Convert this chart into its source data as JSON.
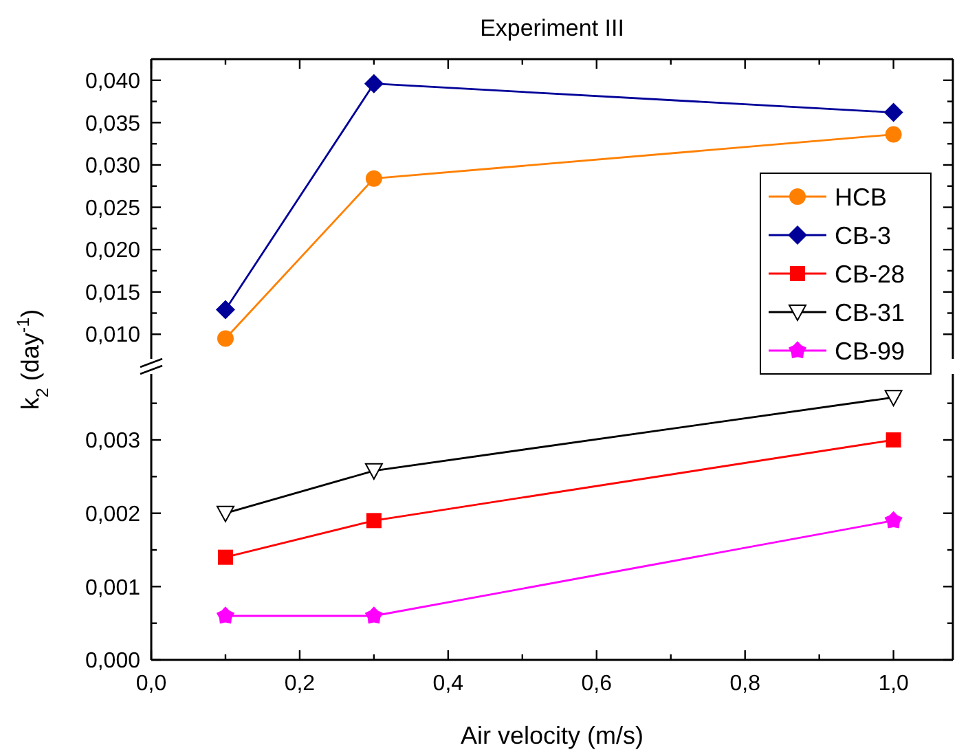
{
  "chart_data": [
    {
      "type": "line",
      "title": "Experiment III",
      "xlim": [
        0,
        1.08
      ],
      "xticks": [
        {
          "value": 0,
          "label": null
        },
        {
          "value": 0.1,
          "label": null
        },
        {
          "value": 0.2,
          "label": null
        },
        {
          "value": 0.3,
          "label": null
        },
        {
          "value": 0.4,
          "label": null
        },
        {
          "value": 0.5,
          "label": null
        },
        {
          "value": 0.6,
          "label": null
        },
        {
          "value": 0.7,
          "label": null
        },
        {
          "value": 0.8,
          "label": null
        },
        {
          "value": 0.9,
          "label": null
        },
        {
          "value": 1.0,
          "label": null
        }
      ],
      "ylim": [
        0.0071,
        0.0425
      ],
      "yticks": [
        {
          "value": 0.01,
          "label": "0,010"
        },
        {
          "value": 0.0125,
          "label": null
        },
        {
          "value": 0.015,
          "label": "0,015"
        },
        {
          "value": 0.0175,
          "label": null
        },
        {
          "value": 0.02,
          "label": "0,020"
        },
        {
          "value": 0.0225,
          "label": null
        },
        {
          "value": 0.025,
          "label": "0,025"
        },
        {
          "value": 0.0275,
          "label": null
        },
        {
          "value": 0.03,
          "label": "0,030"
        },
        {
          "value": 0.0325,
          "label": null
        },
        {
          "value": 0.035,
          "label": "0,035"
        },
        {
          "value": 0.0375,
          "label": null
        },
        {
          "value": 0.04,
          "label": "0,040"
        }
      ],
      "tick_labels": "y",
      "legend": "right",
      "grid": false,
      "x": [
        0.1,
        0.3,
        1.0
      ],
      "series": [
        {
          "name": "HCB",
          "color": "#ff8000",
          "marker": "circle",
          "values": [
            0.0095,
            0.0284,
            0.0336
          ]
        },
        {
          "name": "CB-3",
          "color": "#000099",
          "marker": "diamond",
          "values": [
            0.0129,
            0.0396,
            0.0362
          ]
        }
      ]
    },
    {
      "type": "line",
      "xlabel": "Air velocity (m/s)",
      "ylabel": "k$_{2}$ (day$^{-1}$)",
      "xlim": [
        0,
        1.08
      ],
      "xticks": [
        {
          "value": 0,
          "label": "0,0"
        },
        {
          "value": 0.1,
          "label": null
        },
        {
          "value": 0.2,
          "label": "0,2"
        },
        {
          "value": 0.3,
          "label": null
        },
        {
          "value": 0.4,
          "label": "0,4"
        },
        {
          "value": 0.5,
          "label": null
        },
        {
          "value": 0.6,
          "label": "0,6"
        },
        {
          "value": 0.7,
          "label": null
        },
        {
          "value": 0.8,
          "label": "0,8"
        },
        {
          "value": 0.9,
          "label": null
        },
        {
          "value": 1.0,
          "label": "1,0"
        }
      ],
      "ylim": [
        0,
        0.0039
      ],
      "yticks": [
        {
          "value": 0,
          "label": "0,000"
        },
        {
          "value": 0.0005,
          "label": null
        },
        {
          "value": 0.001,
          "label": "0,001"
        },
        {
          "value": 0.0015,
          "label": null
        },
        {
          "value": 0.002,
          "label": "0,002"
        },
        {
          "value": 0.0025,
          "label": null
        },
        {
          "value": 0.003,
          "label": "0,003"
        },
        {
          "value": 0.0035,
          "label": null
        }
      ],
      "grid": false,
      "legend": "right",
      "x": [
        0.1,
        0.3,
        1.0
      ],
      "series": [
        {
          "name": "CB-28",
          "color": "#ff0000",
          "marker": "square",
          "values": [
            0.0014,
            0.0019,
            0.003
          ]
        },
        {
          "name": "CB-31",
          "color": "#000000",
          "marker": "triangle",
          "values": [
            0.002,
            0.00258,
            0.00358
          ]
        },
        {
          "name": "CB-99",
          "color": "#ff00ff",
          "marker": "star",
          "values": [
            0.0006,
            0.0006,
            0.0019
          ]
        }
      ]
    }
  ]
}
